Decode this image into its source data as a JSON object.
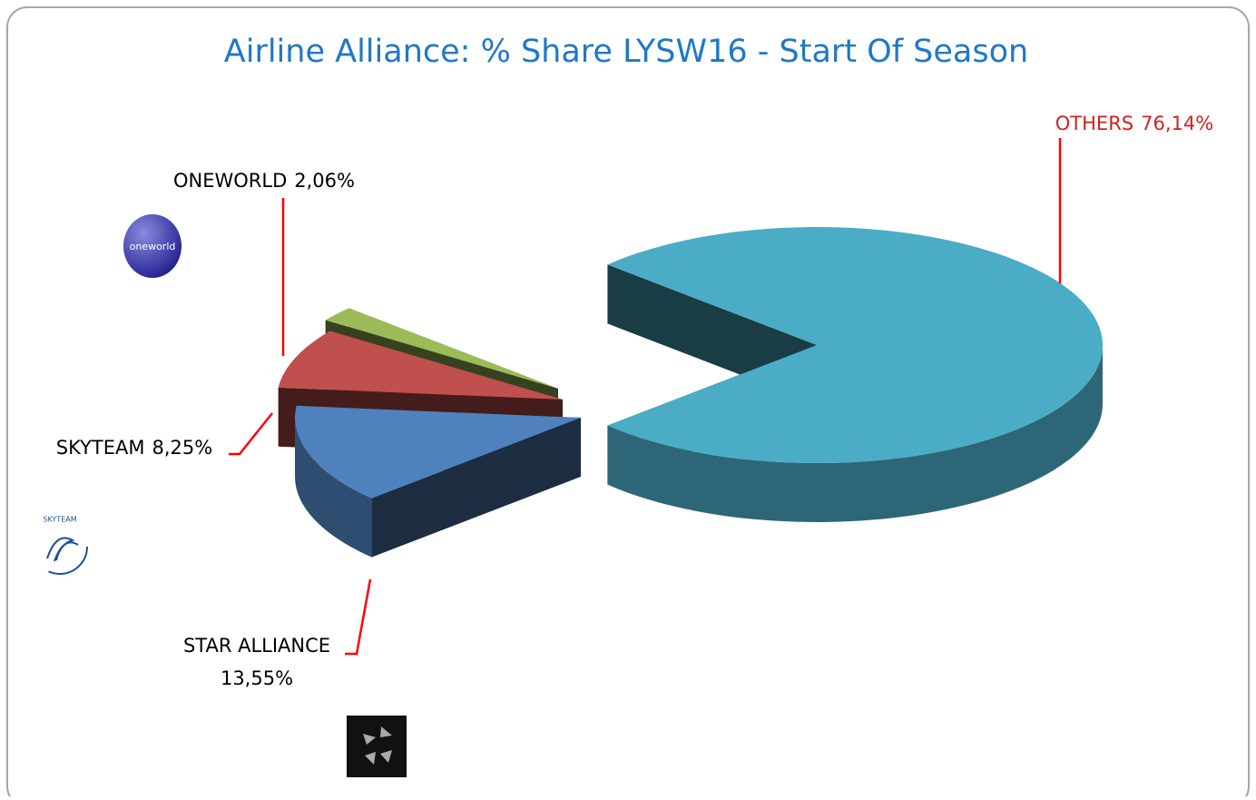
{
  "chart_data": {
    "type": "pie3d",
    "title": "Airline Alliance: % Share LYSW16 - Start Of Season",
    "categories": [
      "OTHERS",
      "STAR ALLIANCE",
      "SKYTEAM",
      "ONEWORLD"
    ],
    "values": [
      76.14,
      13.55,
      8.25,
      2.06
    ],
    "value_labels": [
      "76,14%",
      "13,55%",
      "8,25%",
      "2,06%"
    ],
    "colors": [
      "#4BACC6",
      "#4F81BD",
      "#C0504D",
      "#9BBB59"
    ],
    "logos": [
      "oneworld",
      "SKYTEAM"
    ]
  }
}
